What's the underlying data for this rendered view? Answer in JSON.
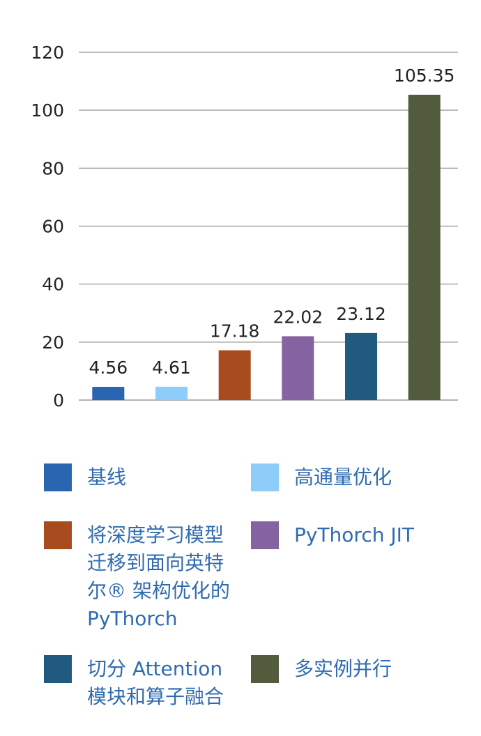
{
  "chart_data": {
    "type": "bar",
    "title": "",
    "xlabel": "",
    "ylabel": "",
    "ylim": [
      0,
      120
    ],
    "yticks": [
      0,
      20,
      40,
      60,
      80,
      100,
      120
    ],
    "grid": true,
    "legend_position": "bottom",
    "categories": [
      "基线",
      "高通量优化",
      "将深度学习模型迁移到面向英特尔® 架构优化的 PyThorch",
      "PyThorch JIT",
      "切分 Attention 模块和算子融合",
      "多实例并行"
    ],
    "values": [
      4.56,
      4.61,
      17.18,
      22.02,
      23.12,
      105.35
    ],
    "value_labels": [
      "4.56",
      "4.61",
      "17.18",
      "22.02",
      "23.12",
      "105.35"
    ],
    "colors": [
      "#2a65b1",
      "#8ecdfa",
      "#a84b1e",
      "#8463a0",
      "#215a7f",
      "#525b3e"
    ]
  },
  "legend": {
    "items": [
      {
        "label": "基线",
        "color": "#2a65b1"
      },
      {
        "label": "高通量优化",
        "color": "#8ecdfa"
      },
      {
        "label": "将深度学习模型\n迁移到面向英特\n尔® 架构优化的\nPyThorch",
        "color": "#a84b1e"
      },
      {
        "label": "PyThorch JIT",
        "color": "#8463a0"
      },
      {
        "label": "切分 Attention\n模块和算子融合",
        "color": "#215a7f"
      },
      {
        "label": "多实例并行",
        "color": "#525b3e"
      }
    ]
  }
}
